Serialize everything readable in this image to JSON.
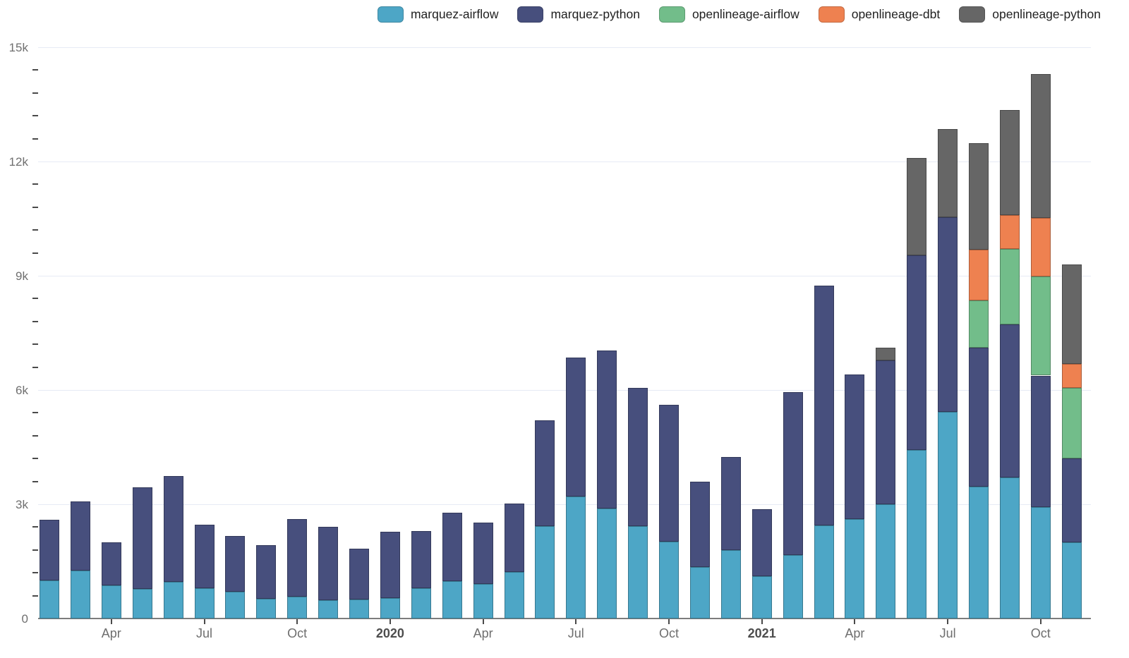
{
  "legend": {
    "items": [
      {
        "label": "marquez-airflow",
        "color": "#4da6c6"
      },
      {
        "label": "marquez-python",
        "color": "#474f7d"
      },
      {
        "label": "openlineage-airflow",
        "color": "#72bd8a"
      },
      {
        "label": "openlineage-dbt",
        "color": "#ee8150"
      },
      {
        "label": "openlineage-python",
        "color": "#666666"
      }
    ]
  },
  "chart_data": {
    "type": "bar",
    "stacked": true,
    "title": "",
    "xlabel": "",
    "ylabel": "",
    "ylim": [
      0,
      15000
    ],
    "grid": true,
    "legend_position": "top-right",
    "months": [
      "2019-02",
      "2019-03",
      "2019-04",
      "2019-05",
      "2019-06",
      "2019-07",
      "2019-08",
      "2019-09",
      "2019-10",
      "2019-11",
      "2019-12",
      "2020-01",
      "2020-02",
      "2020-03",
      "2020-04",
      "2020-05",
      "2020-06",
      "2020-07",
      "2020-08",
      "2020-09",
      "2020-10",
      "2020-11",
      "2020-12",
      "2021-01",
      "2021-02",
      "2021-03",
      "2021-04",
      "2021-05",
      "2021-06",
      "2021-07",
      "2021-08",
      "2021-09",
      "2021-10",
      "2021-11"
    ],
    "series": [
      {
        "name": "marquez-airflow",
        "color": "#4da6c6",
        "values": [
          1000,
          1260,
          870,
          770,
          960,
          790,
          710,
          510,
          570,
          480,
          500,
          530,
          790,
          980,
          910,
          1230,
          2420,
          3200,
          2880,
          2430,
          2020,
          1350,
          1790,
          1110,
          1660,
          2450,
          2610,
          3000,
          4420,
          5430,
          3460,
          3710,
          2920,
          2000
        ]
      },
      {
        "name": "marquez-python",
        "color": "#474f7d",
        "values": [
          1590,
          1810,
          1130,
          2670,
          2790,
          1670,
          1450,
          1420,
          2050,
          1930,
          1330,
          1750,
          1510,
          1800,
          1610,
          1780,
          2790,
          3650,
          4160,
          3630,
          3590,
          2240,
          2460,
          1760,
          4290,
          6290,
          3800,
          3770,
          5120,
          5100,
          3650,
          4020,
          3460,
          2200
        ]
      },
      {
        "name": "openlineage-airflow",
        "color": "#72bd8a",
        "values": [
          0,
          0,
          0,
          0,
          0,
          0,
          0,
          0,
          0,
          0,
          0,
          0,
          0,
          0,
          0,
          0,
          0,
          0,
          0,
          0,
          0,
          0,
          0,
          0,
          0,
          0,
          0,
          0,
          0,
          0,
          1240,
          1970,
          2610,
          1850
        ]
      },
      {
        "name": "openlineage-dbt",
        "color": "#ee8150",
        "values": [
          0,
          0,
          0,
          0,
          0,
          0,
          0,
          0,
          0,
          0,
          0,
          0,
          0,
          0,
          0,
          0,
          0,
          0,
          0,
          0,
          0,
          0,
          0,
          0,
          0,
          0,
          0,
          0,
          0,
          0,
          1340,
          890,
          1530,
          640
        ]
      },
      {
        "name": "openlineage-python",
        "color": "#666666",
        "values": [
          0,
          0,
          0,
          0,
          0,
          0,
          0,
          0,
          0,
          0,
          0,
          0,
          0,
          0,
          0,
          0,
          0,
          0,
          0,
          0,
          0,
          0,
          0,
          0,
          0,
          0,
          0,
          350,
          2550,
          2320,
          2790,
          2760,
          3780,
          2610
        ]
      }
    ],
    "y_ticks": {
      "major_values": [
        0,
        3000,
        6000,
        9000,
        12000,
        15000
      ],
      "major_labels": [
        "0",
        "3k",
        "6k",
        "9k",
        "12k",
        "15k"
      ],
      "minor_step": 600
    },
    "x_ticks": [
      {
        "month_index": 2,
        "label": "Apr",
        "bold": false
      },
      {
        "month_index": 5,
        "label": "Jul",
        "bold": false
      },
      {
        "month_index": 8,
        "label": "Oct",
        "bold": false
      },
      {
        "month_index": 11,
        "label": "2020",
        "bold": true
      },
      {
        "month_index": 14,
        "label": "Apr",
        "bold": false
      },
      {
        "month_index": 17,
        "label": "Jul",
        "bold": false
      },
      {
        "month_index": 20,
        "label": "Oct",
        "bold": false
      },
      {
        "month_index": 23,
        "label": "2021",
        "bold": true
      },
      {
        "month_index": 26,
        "label": "Apr",
        "bold": false
      },
      {
        "month_index": 29,
        "label": "Jul",
        "bold": false
      },
      {
        "month_index": 32,
        "label": "Oct",
        "bold": false
      }
    ],
    "colors": {
      "gridline": "#e6eaf5",
      "axis_line": "#7d7d7d",
      "tick_text": "#6e6e6e",
      "year_text": "#4d4d4d"
    }
  }
}
